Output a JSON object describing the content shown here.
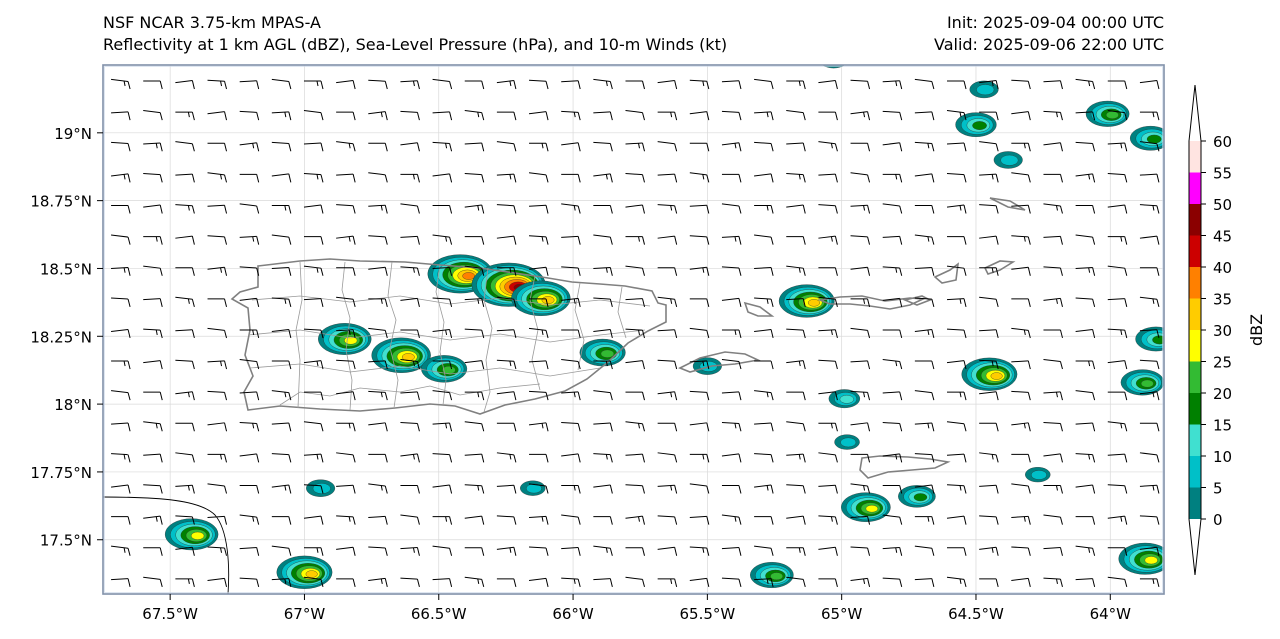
{
  "titles": {
    "left_line1": "NSF NCAR 3.75-km MPAS-A",
    "left_line2": "Reflectivity at 1 km AGL (dBZ), Sea-Level Pressure (hPa), and 10-m Winds (kt)",
    "right_line1": "Init: 2025-09-04 00:00 UTC",
    "right_line2": "Valid: 2025-09-06 22:00 UTC"
  },
  "map": {
    "lon_range": [
      -67.75,
      -63.8
    ],
    "lat_range": [
      17.3,
      19.25
    ],
    "lon_ticks": [
      {
        "value": -67.5,
        "label": "67.5°W"
      },
      {
        "value": -67.0,
        "label": "67°W"
      },
      {
        "value": -66.5,
        "label": "66.5°W"
      },
      {
        "value": -66.0,
        "label": "66°W"
      },
      {
        "value": -65.5,
        "label": "65.5°W"
      },
      {
        "value": -65.0,
        "label": "65°W"
      },
      {
        "value": -64.5,
        "label": "64.5°W"
      },
      {
        "value": -64.0,
        "label": "64°W"
      }
    ],
    "lat_ticks": [
      {
        "value": 19.0,
        "label": "19°N"
      },
      {
        "value": 18.75,
        "label": "18.75°N"
      },
      {
        "value": 18.5,
        "label": "18.5°N"
      },
      {
        "value": 18.25,
        "label": "18.25°N"
      },
      {
        "value": 18.0,
        "label": "18°N"
      },
      {
        "value": 17.75,
        "label": "17.75°N"
      },
      {
        "value": 17.5,
        "label": "17.5°N"
      }
    ]
  },
  "colorbar": {
    "label": "dBZ",
    "ticks": [
      "0",
      "5",
      "10",
      "15",
      "20",
      "25",
      "30",
      "35",
      "40",
      "45",
      "50",
      "55",
      "60"
    ],
    "bins": [
      {
        "from": 0,
        "to": 5,
        "color": "#008080"
      },
      {
        "from": 5,
        "to": 10,
        "color": "#00c0c8"
      },
      {
        "from": 10,
        "to": 15,
        "color": "#40e0d0"
      },
      {
        "from": 15,
        "to": 20,
        "color": "#008000"
      },
      {
        "from": 20,
        "to": 25,
        "color": "#33bb33"
      },
      {
        "from": 25,
        "to": 30,
        "color": "#ffff00"
      },
      {
        "from": 30,
        "to": 35,
        "color": "#ffcc00"
      },
      {
        "from": 35,
        "to": 40,
        "color": "#ff8000"
      },
      {
        "from": 40,
        "to": 45,
        "color": "#cc0000"
      },
      {
        "from": 45,
        "to": 50,
        "color": "#8b0000"
      },
      {
        "from": 50,
        "to": 55,
        "color": "#ff00ff"
      },
      {
        "from": 55,
        "to": 60,
        "color": "#ffe4e1"
      }
    ]
  },
  "cells": [
    {
      "lon": -66.42,
      "lat": 18.48,
      "max_dbz": 38
    },
    {
      "lon": -66.24,
      "lat": 18.44,
      "max_dbz": 45
    },
    {
      "lon": -66.12,
      "lat": 18.39,
      "max_dbz": 33
    },
    {
      "lon": -66.85,
      "lat": 18.24,
      "max_dbz": 28
    },
    {
      "lon": -66.64,
      "lat": 18.18,
      "max_dbz": 33
    },
    {
      "lon": -66.48,
      "lat": 18.13,
      "max_dbz": 22
    },
    {
      "lon": -65.89,
      "lat": 18.19,
      "max_dbz": 22
    },
    {
      "lon": -65.5,
      "lat": 18.14,
      "max_dbz": 8
    },
    {
      "lon": -65.13,
      "lat": 18.38,
      "max_dbz": 30
    },
    {
      "lon": -64.99,
      "lat": 18.02,
      "max_dbz": 10
    },
    {
      "lon": -64.98,
      "lat": 17.86,
      "max_dbz": 5
    },
    {
      "lon": -64.91,
      "lat": 17.62,
      "max_dbz": 25
    },
    {
      "lon": -64.72,
      "lat": 17.66,
      "max_dbz": 15
    },
    {
      "lon": -64.45,
      "lat": 18.11,
      "max_dbz": 30
    },
    {
      "lon": -64.5,
      "lat": 19.03,
      "max_dbz": 18
    },
    {
      "lon": -64.47,
      "lat": 19.16,
      "max_dbz": 8
    },
    {
      "lon": -64.38,
      "lat": 18.9,
      "max_dbz": 8
    },
    {
      "lon": -64.01,
      "lat": 19.07,
      "max_dbz": 20
    },
    {
      "lon": -63.85,
      "lat": 18.98,
      "max_dbz": 18
    },
    {
      "lon": -63.83,
      "lat": 18.24,
      "max_dbz": 18
    },
    {
      "lon": -63.88,
      "lat": 18.08,
      "max_dbz": 20
    },
    {
      "lon": -63.87,
      "lat": 17.43,
      "max_dbz": 28
    },
    {
      "lon": -65.26,
      "lat": 17.37,
      "max_dbz": 20
    },
    {
      "lon": -67.0,
      "lat": 17.38,
      "max_dbz": 30
    },
    {
      "lon": -67.42,
      "lat": 17.52,
      "max_dbz": 28
    },
    {
      "lon": -66.94,
      "lat": 17.69,
      "max_dbz": 8
    },
    {
      "lon": -66.15,
      "lat": 17.69,
      "max_dbz": 5
    },
    {
      "lon": -64.27,
      "lat": 17.74,
      "max_dbz": 5
    },
    {
      "lon": -65.03,
      "lat": 19.27,
      "max_dbz": 8
    }
  ]
}
